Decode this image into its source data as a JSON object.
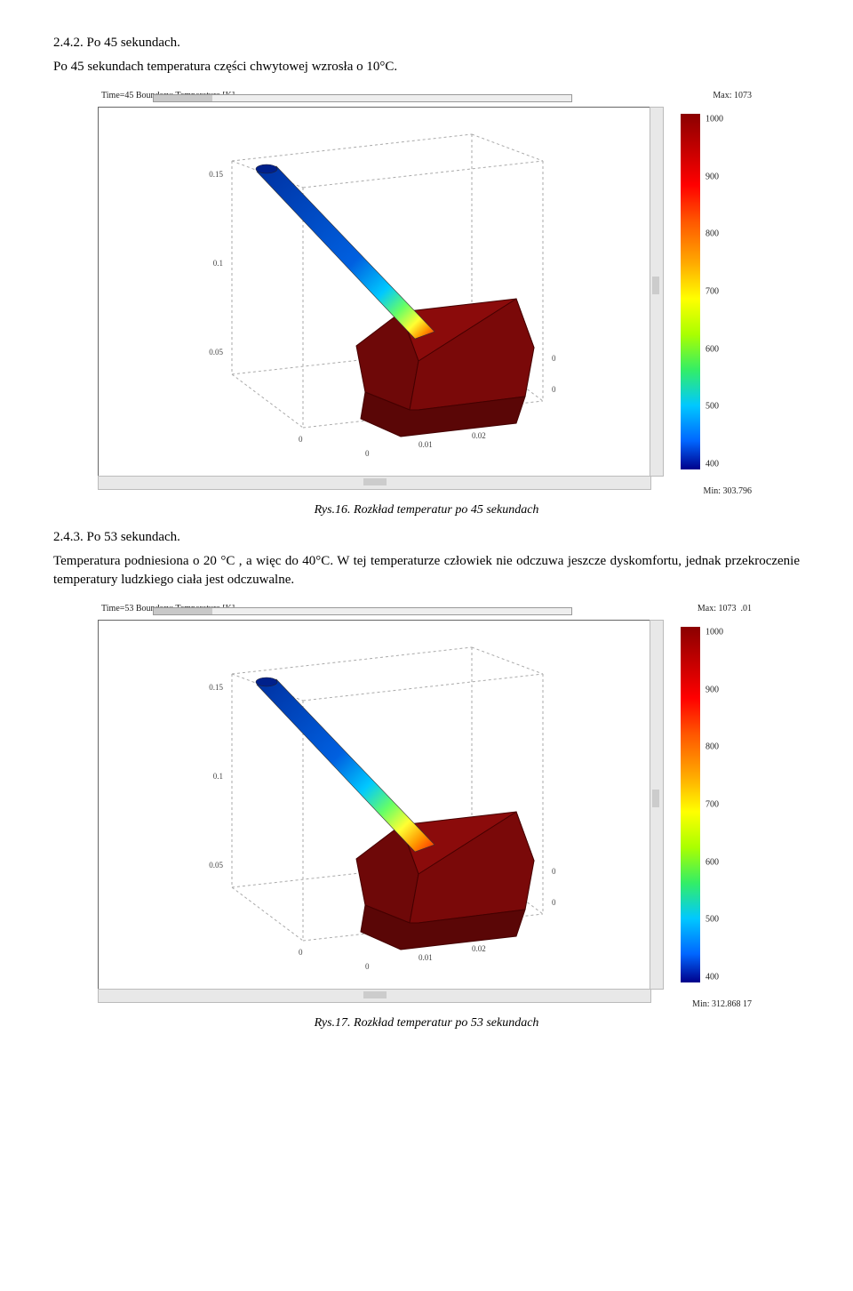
{
  "sections": {
    "s1": {
      "heading": "2.4.2. Po 45 sekundach.",
      "para": "Po 45 sekundach temperatura części chwytowej wzrosła o 10°C."
    },
    "s2": {
      "heading": "2.4.3. Po 53 sekundach.",
      "para": "Temperatura podniesiona o 20 °C , a więc do 40°C. W tej temperaturze człowiek nie odczuwa jeszcze dyskomfortu, jednak przekroczenie temperatury ludzkiego ciała jest odczuwalne."
    }
  },
  "figures": {
    "f16": {
      "caption": "Rys.16. Rozkład temperatur po 45 sekundach",
      "topbar_label": "Time=45  Boundary: Temperature [K]",
      "max_label": "Max: 1073",
      "min_label": "Min: 303.796",
      "colorbar": {
        "ticks": [
          "1000",
          "900",
          "800",
          "700",
          "600",
          "500",
          "400"
        ],
        "stops": [
          {
            "pct": 0,
            "color": "#8b0000"
          },
          {
            "pct": 10,
            "color": "#c40000"
          },
          {
            "pct": 20,
            "color": "#ff0000"
          },
          {
            "pct": 30,
            "color": "#ff5500"
          },
          {
            "pct": 42,
            "color": "#ffaa00"
          },
          {
            "pct": 52,
            "color": "#ffff00"
          },
          {
            "pct": 62,
            "color": "#aaff00"
          },
          {
            "pct": 72,
            "color": "#33ee66"
          },
          {
            "pct": 82,
            "color": "#00c8ff"
          },
          {
            "pct": 92,
            "color": "#0066ff"
          },
          {
            "pct": 100,
            "color": "#00008b"
          }
        ]
      },
      "handle_gradient": [
        {
          "o": 0,
          "c": "#0030a0"
        },
        {
          "o": 0.55,
          "c": "#0060e0"
        },
        {
          "o": 0.72,
          "c": "#00c8ff"
        },
        {
          "o": 0.82,
          "c": "#66ff66"
        },
        {
          "o": 0.9,
          "c": "#ffff33"
        },
        {
          "o": 0.95,
          "c": "#ff9900"
        },
        {
          "o": 1,
          "c": "#ff2200"
        }
      ],
      "head_color": "#8b0b0b",
      "axis_ticks": {
        "z": [
          "0.15",
          "0.1",
          "0.05"
        ],
        "x": [
          "0",
          "0.01",
          "0.02"
        ],
        "y_end": "0",
        "box_right": "0"
      }
    },
    "f17": {
      "caption": "Rys.17. Rozkład temperatur po 53 sekundach",
      "topbar_label": "Time=53  Boundary: Temperature [K]",
      "max_label": "Max: 1073",
      "min_label": "Min: 312.868",
      "extra_right": ".01",
      "extra_right2": "17",
      "colorbar": {
        "ticks": [
          "1000",
          "900",
          "800",
          "700",
          "600",
          "500",
          "400"
        ],
        "stops": [
          {
            "pct": 0,
            "color": "#8b0000"
          },
          {
            "pct": 10,
            "color": "#c40000"
          },
          {
            "pct": 20,
            "color": "#ff0000"
          },
          {
            "pct": 30,
            "color": "#ff5500"
          },
          {
            "pct": 42,
            "color": "#ffaa00"
          },
          {
            "pct": 52,
            "color": "#ffff00"
          },
          {
            "pct": 62,
            "color": "#aaff00"
          },
          {
            "pct": 72,
            "color": "#33ee66"
          },
          {
            "pct": 82,
            "color": "#00c8ff"
          },
          {
            "pct": 92,
            "color": "#0066ff"
          },
          {
            "pct": 100,
            "color": "#00008b"
          }
        ]
      },
      "handle_gradient": [
        {
          "o": 0,
          "c": "#0030a0"
        },
        {
          "o": 0.45,
          "c": "#0060e0"
        },
        {
          "o": 0.62,
          "c": "#00c8ff"
        },
        {
          "o": 0.74,
          "c": "#66ff66"
        },
        {
          "o": 0.84,
          "c": "#ffff33"
        },
        {
          "o": 0.92,
          "c": "#ff9900"
        },
        {
          "o": 1,
          "c": "#ff2200"
        }
      ],
      "head_color": "#8b0b0b",
      "axis_ticks": {
        "z": [
          "0.15",
          "0.1",
          "0.05"
        ],
        "x": [
          "0",
          "0.01",
          "0.02"
        ],
        "y_end": "0",
        "box_right": "0"
      }
    }
  }
}
